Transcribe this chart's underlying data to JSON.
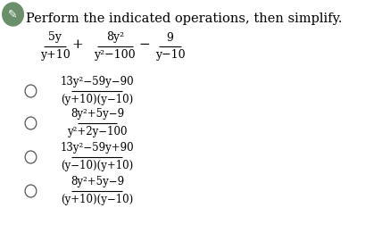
{
  "title": "Perform the indicated operations, then simplify.",
  "background_color": "#ffffff",
  "icon_color": "#6b8f6b",
  "question": {
    "frac1_num": "5y",
    "frac1_den": "y+10",
    "op1": "+",
    "frac2_num": "8y²",
    "frac2_den": "y²−100",
    "op2": "−",
    "frac3_num": "9",
    "frac3_den": "y−10"
  },
  "options": [
    {
      "num": "13y²−59y−90",
      "den": "(y+10)(y−10)"
    },
    {
      "num": "8y²+5y−9",
      "den": "y²+2y−100"
    },
    {
      "num": "13y²−59y+90",
      "den": "(y−10)(y+10)"
    },
    {
      "num": "8y²+5y−9",
      "den": "(y+10)(y−10)"
    }
  ],
  "title_fontsize": 10.5,
  "question_fontsize": 9.0,
  "option_fontsize": 8.5
}
